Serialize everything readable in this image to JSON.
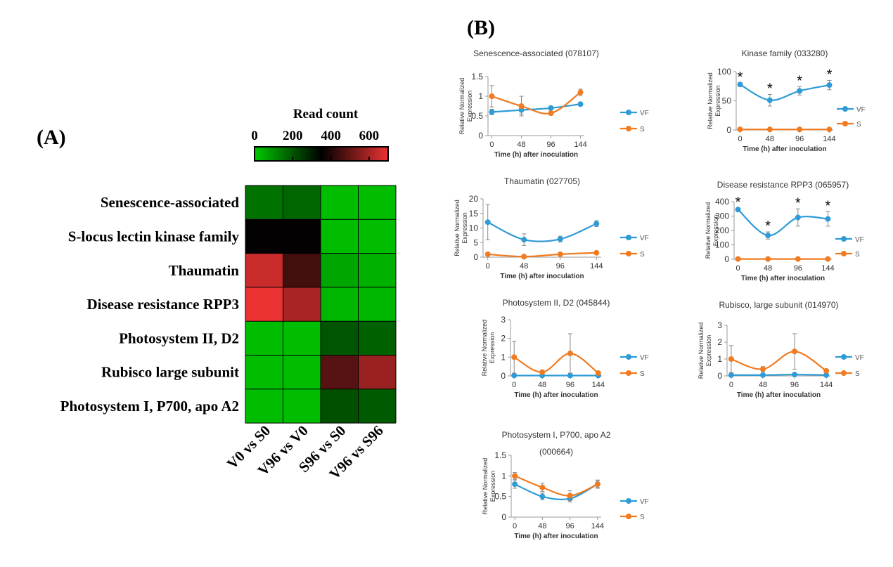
{
  "panel_labels": {
    "a": "(A)",
    "b": "(B)"
  },
  "chart_data": [
    {
      "type": "heatmap",
      "title": "Read count",
      "colorbar_ticks": [
        "0",
        "200",
        "400",
        "600"
      ],
      "colorbar_range": [
        0,
        700
      ],
      "rows": [
        "Senescence-associated",
        "S-locus lectin kinase family",
        "Thaumatin",
        "Disease resistance RPP3",
        "Photosystem II, D2",
        "Rubisco large subunit",
        "Photosystem I, P700, apo A2"
      ],
      "columns": [
        "V0 vs S0",
        "V96 vs V0",
        "S96 vs S0",
        "V96 vs S96"
      ],
      "values": [
        [
          150,
          170,
          20,
          20
        ],
        [
          355,
          355,
          20,
          20
        ],
        [
          650,
          450,
          60,
          40
        ],
        [
          700,
          600,
          30,
          30
        ],
        [
          20,
          20,
          200,
          180
        ],
        [
          20,
          20,
          480,
          580
        ],
        [
          20,
          20,
          210,
          190
        ]
      ]
    },
    {
      "type": "line",
      "title": "Senescence-associated (078107)",
      "x": [
        "0",
        "48",
        "96",
        "144"
      ],
      "xlabel": "Time (h) after inoculation",
      "ylabel_lines": [
        "Relative Normalized",
        "Expression"
      ],
      "ylim": [
        0,
        1.5
      ],
      "y_ticks": [
        "0",
        "0.5",
        "1",
        "1.5"
      ],
      "series": [
        {
          "name": "VF",
          "values": [
            0.6,
            0.65,
            0.7,
            0.8
          ],
          "errors": [
            0.07,
            0.1,
            0.05,
            0.03
          ],
          "color": "#2E9BD7"
        },
        {
          "name": "S",
          "values": [
            1.0,
            0.75,
            0.57,
            1.1
          ],
          "errors": [
            0.27,
            0.25,
            0.05,
            0.08
          ],
          "color": "#F07B21"
        }
      ],
      "asterisks": []
    },
    {
      "type": "line",
      "title": "Kinase family (033280)",
      "x": [
        "0",
        "48",
        "96",
        "144"
      ],
      "xlabel": "Time (h) after inoculation",
      "ylabel_lines": [
        "Relative Normalized",
        "Expression"
      ],
      "ylim": [
        0,
        100
      ],
      "y_ticks": [
        "0",
        "50",
        "100"
      ],
      "series": [
        {
          "name": "VF",
          "values": [
            78,
            51,
            67,
            77
          ],
          "errors": [
            3,
            10,
            7,
            8
          ],
          "color": "#2E9BD7"
        },
        {
          "name": "S",
          "values": [
            1,
            1,
            1,
            1
          ],
          "errors": [
            0.5,
            0.5,
            0.5,
            0.5
          ],
          "color": "#F07B21"
        }
      ],
      "asterisks": [
        "*",
        "*",
        "*",
        "*"
      ]
    },
    {
      "type": "line",
      "title": "Thaumatin (027705)",
      "x": [
        "0",
        "48",
        "96",
        "144"
      ],
      "xlabel": "Time (h) after inoculation",
      "ylabel_lines": [
        "Relative Normalized",
        "Expression"
      ],
      "ylim": [
        0,
        20
      ],
      "y_ticks": [
        "0",
        "5",
        "10",
        "15",
        "20"
      ],
      "series": [
        {
          "name": "VF",
          "values": [
            12,
            6,
            6.2,
            11.5
          ],
          "errors": [
            6,
            2,
            1,
            1
          ],
          "color": "#2E9BD7"
        },
        {
          "name": "S",
          "values": [
            1,
            0.2,
            1,
            1.5
          ],
          "errors": [
            0.3,
            0.1,
            0.2,
            0.3
          ],
          "color": "#F07B21"
        }
      ],
      "asterisks": []
    },
    {
      "type": "line",
      "title": "Disease resistance RPP3 (065957)",
      "x": [
        "0",
        "48",
        "96",
        "144"
      ],
      "xlabel": "Time (h) after inoculation",
      "ylabel_lines": [
        "Relative Normalized",
        "Expression"
      ],
      "ylim": [
        0,
        400
      ],
      "y_ticks": [
        "0",
        "100",
        "200",
        "300",
        "400"
      ],
      "series": [
        {
          "name": "VF",
          "values": [
            345,
            165,
            290,
            280
          ],
          "errors": [
            10,
            25,
            60,
            50
          ],
          "color": "#2E9BD7"
        },
        {
          "name": "S",
          "values": [
            2,
            2,
            2,
            2
          ],
          "errors": [
            1,
            1,
            1,
            1
          ],
          "color": "#F07B21"
        }
      ],
      "asterisks": [
        "*",
        "*",
        "*",
        "*"
      ]
    },
    {
      "type": "line",
      "title": "Photosystem II, D2 (045844)",
      "x": [
        "0",
        "48",
        "96",
        "144"
      ],
      "xlabel": "Time (h) after inoculation",
      "ylabel_lines": [
        "Relative Normalized",
        "Expression"
      ],
      "ylim": [
        0,
        3
      ],
      "y_ticks": [
        "0",
        "1",
        "2",
        "3"
      ],
      "series": [
        {
          "name": "VF",
          "values": [
            0.02,
            0.02,
            0.02,
            0.02
          ],
          "errors": [
            0.01,
            0.01,
            0.01,
            0.01
          ],
          "color": "#2E9BD7"
        },
        {
          "name": "S",
          "values": [
            1.0,
            0.2,
            1.2,
            0.15
          ],
          "errors": [
            0.85,
            0.05,
            1.05,
            0.05
          ],
          "color": "#F07B21"
        }
      ],
      "asterisks": []
    },
    {
      "type": "line",
      "title": "Rubisco, large subunit (014970)",
      "x": [
        "0",
        "48",
        "96",
        "144"
      ],
      "xlabel": "Time (h) after inoculation",
      "ylabel_lines": [
        "Relative Normalized",
        "Expression"
      ],
      "ylim": [
        0,
        3
      ],
      "y_ticks": [
        "0",
        "1",
        "2",
        "3"
      ],
      "series": [
        {
          "name": "VF",
          "values": [
            0.05,
            0.05,
            0.08,
            0.05
          ],
          "errors": [
            0.02,
            0.02,
            0.02,
            0.02
          ],
          "color": "#2E9BD7"
        },
        {
          "name": "S",
          "values": [
            1.0,
            0.4,
            1.45,
            0.3
          ],
          "errors": [
            0.8,
            0.15,
            1.05,
            0.05
          ],
          "color": "#F07B21"
        }
      ],
      "asterisks": []
    },
    {
      "type": "line",
      "title": "Photosystem I, P700, apo A2",
      "title_line2": "(000664)",
      "x": [
        "0",
        "48",
        "96",
        "144"
      ],
      "xlabel": "Time (h) after inoculation",
      "ylabel_lines": [
        "Relative Normalized",
        "Expression"
      ],
      "ylim": [
        0,
        1.5
      ],
      "y_ticks": [
        "0",
        "0.5",
        "1",
        "1.5"
      ],
      "series": [
        {
          "name": "VF",
          "values": [
            0.8,
            0.5,
            0.45,
            0.8
          ],
          "errors": [
            0.1,
            0.08,
            0.08,
            0.08
          ],
          "color": "#2E9BD7"
        },
        {
          "name": "S",
          "values": [
            1.0,
            0.72,
            0.52,
            0.8
          ],
          "errors": [
            0.08,
            0.1,
            0.12,
            0.1
          ],
          "color": "#F07B21"
        }
      ],
      "asterisks": []
    }
  ]
}
